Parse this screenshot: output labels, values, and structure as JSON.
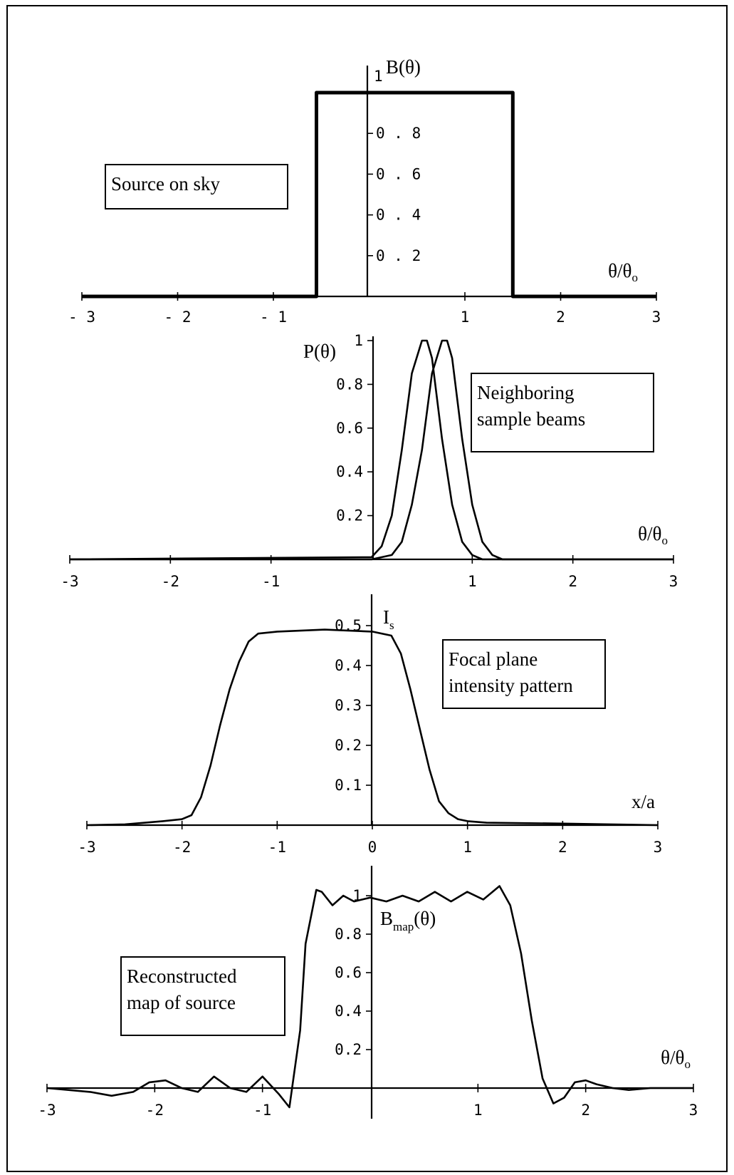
{
  "chart_data": [
    {
      "id": "p1",
      "type": "line",
      "ylabel": "B(θ)",
      "xlabel_main": "θ/θ",
      "xlabel_sub": "o",
      "annotation": [
        "Source on sky"
      ],
      "x_ticks": [
        -3,
        -2,
        -1,
        1,
        2,
        3
      ],
      "x_tick_labels": [
        "- 3",
        "- 2",
        "- 1",
        "1",
        "2",
        "3"
      ],
      "y_ticks": [
        0.2,
        0.4,
        0.6,
        0.8,
        1
      ],
      "y_tick_labels": [
        "0 . 2",
        "0 . 4",
        "0 . 6",
        "0 . 8",
        "1"
      ],
      "xlim": [
        -3,
        3
      ],
      "ylim": [
        0,
        1
      ],
      "series": [
        {
          "x": [
            -3,
            -0.55,
            -0.55,
            1.5,
            1.5,
            3
          ],
          "y": [
            0,
            0,
            1,
            1,
            0,
            0
          ]
        }
      ]
    },
    {
      "id": "p2",
      "type": "line",
      "ylabel": "P(θ)",
      "xlabel_main": "θ/θ",
      "xlabel_sub": "o",
      "annotation": [
        "Neighboring",
        "sample beams"
      ],
      "x_ticks": [
        -3,
        -2,
        -1,
        1,
        2,
        3
      ],
      "x_tick_labels": [
        "-3",
        "-2",
        "-1",
        "1",
        "2",
        "3"
      ],
      "y_ticks": [
        0.2,
        0.4,
        0.6,
        0.8,
        1
      ],
      "y_tick_labels": [
        "0.2",
        "0.4",
        "0.6",
        "0.8",
        "1"
      ],
      "xlim": [
        -3,
        3
      ],
      "ylim": [
        0,
        1
      ],
      "series": [
        {
          "x": [
            -3,
            0,
            0.1,
            0.2,
            0.3,
            0.4,
            0.5,
            0.55,
            0.6,
            0.7,
            0.8,
            0.9,
            1.0,
            1.1,
            3
          ],
          "y": [
            0,
            0.01,
            0.06,
            0.2,
            0.5,
            0.85,
            1.0,
            1.0,
            0.92,
            0.55,
            0.25,
            0.08,
            0.02,
            0,
            0
          ]
        },
        {
          "x": [
            -3,
            0,
            0.2,
            0.3,
            0.4,
            0.5,
            0.6,
            0.7,
            0.75,
            0.8,
            0.9,
            1.0,
            1.1,
            1.2,
            1.3,
            3
          ],
          "y": [
            0,
            0,
            0.02,
            0.08,
            0.25,
            0.5,
            0.85,
            1.0,
            1.0,
            0.92,
            0.55,
            0.25,
            0.08,
            0.02,
            0,
            0
          ]
        }
      ]
    },
    {
      "id": "p3",
      "type": "line",
      "ylabel": "I",
      "ylabel_sub": "s",
      "xlabel_main": "x/a",
      "annotation": [
        "Focal plane",
        "intensity pattern"
      ],
      "x_ticks": [
        -3,
        -2,
        -1,
        0,
        1,
        2,
        3
      ],
      "x_tick_labels": [
        "-3",
        "-2",
        "-1",
        "0",
        "1",
        "2",
        "3"
      ],
      "y_ticks": [
        0.1,
        0.2,
        0.3,
        0.4,
        0.5
      ],
      "y_tick_labels": [
        "0.1",
        "0.2",
        "0.3",
        "0.4",
        "0.5"
      ],
      "xlim": [
        -3,
        3
      ],
      "ylim": [
        0,
        0.55
      ],
      "series": [
        {
          "x": [
            -3,
            -2.6,
            -2.2,
            -2.0,
            -1.9,
            -1.8,
            -1.7,
            -1.6,
            -1.5,
            -1.4,
            -1.3,
            -1.2,
            -1.0,
            -0.5,
            0,
            0.2,
            0.3,
            0.4,
            0.5,
            0.6,
            0.7,
            0.8,
            0.9,
            1.0,
            1.2,
            2.0,
            2.5,
            3
          ],
          "y": [
            0,
            0.002,
            0.01,
            0.015,
            0.025,
            0.07,
            0.15,
            0.25,
            0.34,
            0.41,
            0.46,
            0.48,
            0.485,
            0.49,
            0.485,
            0.475,
            0.43,
            0.34,
            0.24,
            0.14,
            0.06,
            0.03,
            0.015,
            0.01,
            0.006,
            0.004,
            0.002,
            0
          ]
        }
      ]
    },
    {
      "id": "p4",
      "type": "line",
      "ylabel": "B",
      "ylabel_sub": "map",
      "ylabel_tail": "(θ)",
      "xlabel_main": "θ/θ",
      "xlabel_sub": "o",
      "annotation": [
        "Reconstructed",
        "map of source"
      ],
      "x_ticks": [
        -3,
        -2,
        -1,
        1,
        2,
        3
      ],
      "x_tick_labels": [
        "-3",
        "-2",
        "-1",
        "1",
        "2",
        "3"
      ],
      "y_ticks": [
        0.2,
        0.4,
        0.6,
        0.8,
        1
      ],
      "y_tick_labels": [
        "0.2",
        "0.4",
        "0.6",
        "0.8",
        "1"
      ],
      "xlim": [
        -3,
        3
      ],
      "ylim": [
        -0.12,
        1.1
      ],
      "series": [
        {
          "x": [
            -3,
            -2.6,
            -2.4,
            -2.2,
            -2.05,
            -1.9,
            -1.75,
            -1.6,
            -1.45,
            -1.3,
            -1.15,
            -1.0,
            -0.85,
            -0.75,
            -0.65,
            -0.6,
            -0.5,
            -0.45,
            -0.35,
            -0.25,
            -0.15,
            0,
            0.15,
            0.3,
            0.45,
            0.6,
            0.75,
            0.9,
            1.05,
            1.2,
            1.3,
            1.4,
            1.5,
            1.6,
            1.7,
            1.8,
            1.9,
            2.0,
            2.1,
            2.25,
            2.4,
            2.6,
            3
          ],
          "y": [
            0,
            -0.02,
            -0.04,
            -0.02,
            0.03,
            0.04,
            0.0,
            -0.02,
            0.06,
            0.0,
            -0.02,
            0.06,
            -0.03,
            -0.1,
            0.3,
            0.75,
            1.03,
            1.02,
            0.95,
            1.0,
            0.97,
            0.99,
            0.97,
            1.0,
            0.97,
            1.02,
            0.97,
            1.02,
            0.98,
            1.05,
            0.95,
            0.7,
            0.35,
            0.05,
            -0.08,
            -0.05,
            0.03,
            0.04,
            0.02,
            0.0,
            -0.01,
            0.0,
            0
          ]
        }
      ]
    }
  ]
}
